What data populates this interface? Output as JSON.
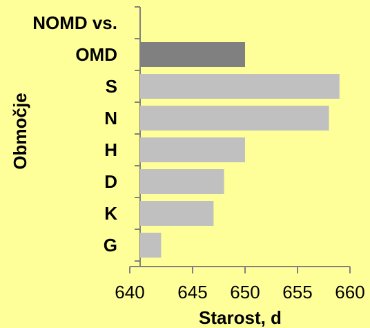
{
  "chart_data": {
    "type": "bar",
    "orientation": "horizontal",
    "categories": [
      "NOMD vs.",
      "OMD",
      "S",
      "N",
      "H",
      "D",
      "K",
      "G"
    ],
    "values": [
      null,
      650,
      659,
      658,
      650,
      648,
      647,
      642
    ],
    "highlight": "OMD",
    "xlabel": "Starost, d",
    "ylabel": "Območje",
    "xlim": [
      640,
      660
    ],
    "xticks": [
      640,
      645,
      650,
      655,
      660
    ],
    "xtick_labels": [
      "640",
      "645",
      "650",
      "655",
      "660"
    ],
    "grid": false,
    "legend": "none"
  },
  "colors": {
    "background": "#ffff99",
    "bar": "#c0c0c0",
    "bar_highlight": "#808080",
    "axis": "#808080"
  }
}
